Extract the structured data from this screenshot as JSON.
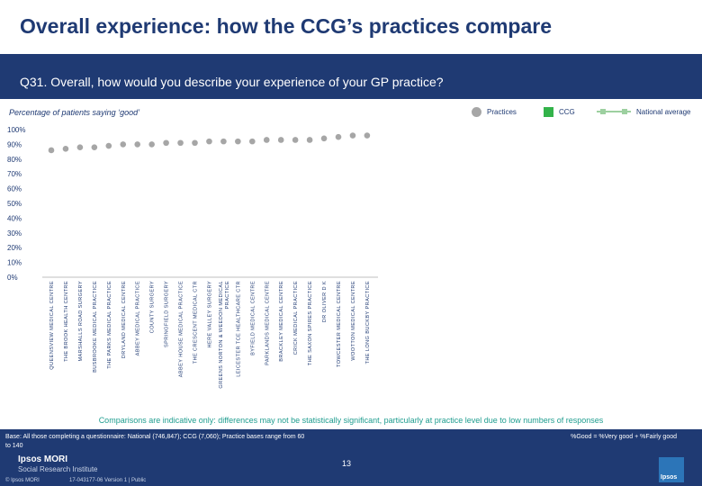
{
  "header": {
    "title": "Overall experience: how the CCG’s practices compare",
    "question": "Q31. Overall, how would you describe your experience of your GP practice?"
  },
  "subtitle": "Percentage of patients saying ‘good’",
  "legend": {
    "practices": "Practices",
    "ccg": "CCG",
    "national": "National average"
  },
  "colors": {
    "practice_dot": "#a6a6a6",
    "ccg": "#33b34a",
    "national": "#9dd0a0",
    "brand": "#1f3a73"
  },
  "chart_data": {
    "type": "scatter",
    "title": "Percentage of patients saying ‘good’",
    "ylabel": "",
    "xlabel": "",
    "ylim": [
      0,
      100
    ],
    "yticks": [
      "0%",
      "10%",
      "20%",
      "30%",
      "40%",
      "50%",
      "60%",
      "70%",
      "80%",
      "90%",
      "100%"
    ],
    "grid": false,
    "categories": [
      "QUEENSVIEW MEDICAL CENTRE",
      "THE BROOK HEALTH CENTRE",
      "MARSHALLS ROAD SURGERY",
      "BUSBROOKE MEDICAL PRACTICE",
      "THE PARKS MEDICAL PRACTICE",
      "DRYLAND MEDICAL CENTRE",
      "ABBEY MEDICAL PRACTICE",
      "COUNTY SURGERY",
      "SPRINGFIELD SURGERY",
      "ABBEY HOUSE MEDICAL PRACTICE",
      "THE CRESCENT MEDICAL CTR",
      "HERE VALLEY SURGERY",
      "GREENS NORTON & WEEDON MEDICAL PRACTICE",
      "LEICESTER TCE HEALTHCARE CTR",
      "BYFIELD MEDICAL CENTRE",
      "PARKLANDS MEDICAL CENTRE",
      "BRACKLEY MEDICAL CENTRE",
      "CRICK MEDICAL PRACTICE",
      "THE SAXON SPIRES PRACTICE",
      "DR OLIVER D K",
      "TOWCESTER MEDICAL CENTRE",
      "WOOTTON MEDICAL CENTRE",
      "THE LONG BUCKBY PRACTICE"
    ],
    "series": [
      {
        "name": "Practices",
        "values": [
          86,
          87,
          88,
          88,
          89,
          90,
          90,
          90,
          91,
          91,
          91,
          92,
          92,
          92,
          92,
          93,
          93,
          93,
          93,
          94,
          95,
          96,
          96
        ]
      }
    ]
  },
  "comparison_note": "Comparisons are indicative only: differences may not be statistically significant, particularly at practice level due to low numbers of responses",
  "base_note": "Base: All those completing a questionnaire: National (746,847); CCG (7,060); Practice bases range from 60 to 140",
  "good_note": "%Good = %Very good + %Fairly good",
  "footer": {
    "logo_name": "Ipsos MORI",
    "logo_sub": "Social Research Institute",
    "page": "13",
    "copyright": "© Ipsos MORI",
    "version": "17-043177-06 Version 1 | Public",
    "brand": "Ipsos"
  }
}
